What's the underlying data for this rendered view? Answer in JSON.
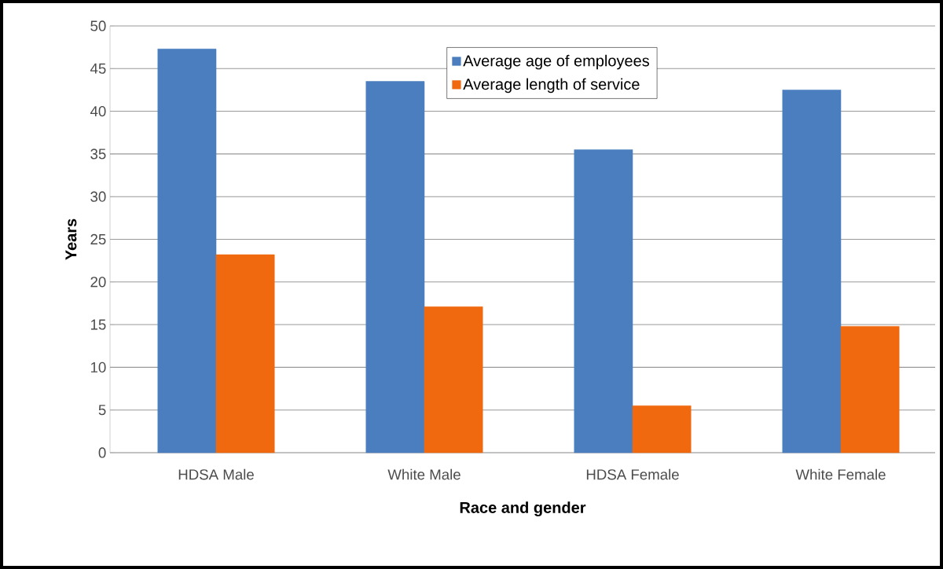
{
  "chart_data": {
    "type": "bar",
    "xlabel": "Race and gender",
    "ylabel": "Years",
    "categories": [
      "HDSA Male",
      "White Male",
      "HDSA Female",
      "White Female"
    ],
    "series": [
      {
        "name": "Average age of employees",
        "color": "#4a7ebf",
        "values": [
          47.3,
          43.5,
          35.5,
          42.5
        ]
      },
      {
        "name": "Average length of service",
        "color": "#f0690f",
        "values": [
          23.2,
          17.1,
          5.5,
          14.8
        ]
      }
    ],
    "ylim": [
      0,
      50
    ],
    "yticks": [
      0,
      5,
      10,
      15,
      20,
      25,
      30,
      35,
      40,
      45,
      50
    ],
    "grid": "y",
    "legend": "top"
  }
}
